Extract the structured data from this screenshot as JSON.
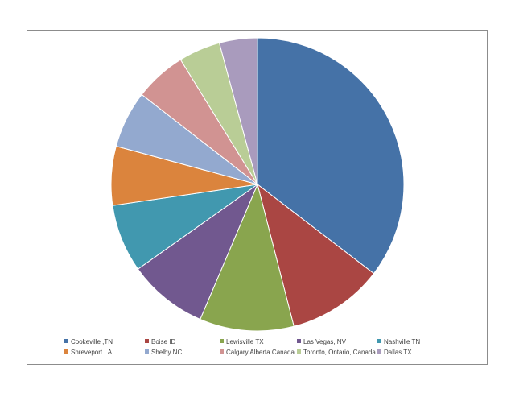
{
  "chart_data": {
    "type": "pie",
    "title": "",
    "start_angle_deg": 0,
    "direction": "clockwise",
    "legend_placement": "bottom",
    "slices": [
      {
        "label": "Cookeville ,TN",
        "value": 35.4,
        "color": "#4572A7"
      },
      {
        "label": "Boise ID",
        "value": 10.6,
        "color": "#AA4643"
      },
      {
        "label": "Lewisville TX",
        "value": 10.4,
        "color": "#89A54E"
      },
      {
        "label": "Las Vegas, NV",
        "value": 8.8,
        "color": "#71588F"
      },
      {
        "label": "Nashville TN",
        "value": 7.5,
        "color": "#4198AF"
      },
      {
        "label": "Shreveport LA",
        "value": 6.5,
        "color": "#DB843D"
      },
      {
        "label": "Shelby NC",
        "value": 6.3,
        "color": "#93A9CF"
      },
      {
        "label": "Calgary Alberta Canada",
        "value": 5.7,
        "color": "#D19392"
      },
      {
        "label": "Toronto, Ontario, Canada",
        "value": 4.6,
        "color": "#B9CD96"
      },
      {
        "label": "Dallas TX",
        "value": 4.2,
        "color": "#A99BBD"
      }
    ]
  }
}
